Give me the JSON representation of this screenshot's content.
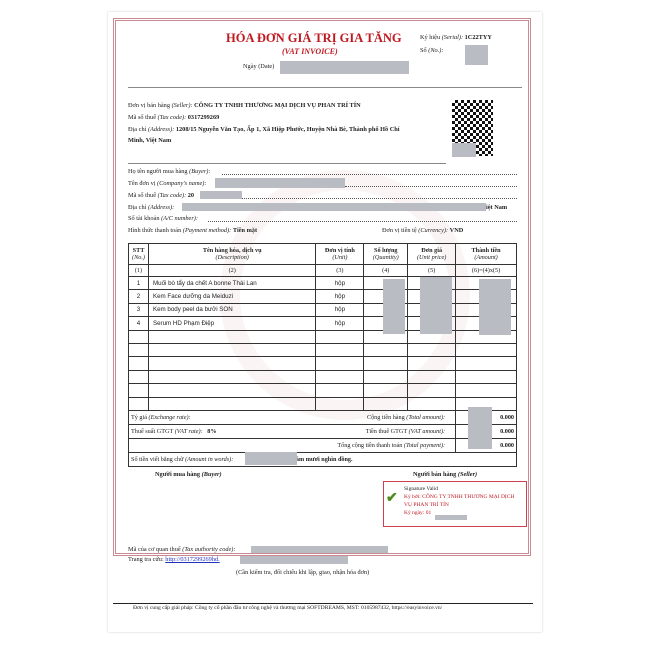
{
  "title": "HÓA ĐƠN GIÁ TRỊ GIA TĂNG",
  "subtitle": "(VAT INVOICE)",
  "date_label": "Ngày (Date)",
  "serial_label": "Ký hiệu",
  "serial_label_en": "(Serial):",
  "serial": "1C22TYY",
  "no_label": "Số",
  "no_label_en": "(No.):",
  "seller": {
    "name_label": "Đơn vị bán hàng",
    "name_label_en": "(Seller):",
    "name": "CÔNG TY TNHH THƯƠNG MẠI DỊCH VỤ PHAN TRÍ TÍN",
    "tax_label": "Mã số thuế",
    "tax_label_en": "(Tax code):",
    "tax": "0317299269",
    "addr_label": "Địa chỉ",
    "addr_label_en": "(Address):",
    "addr1": "1208/15 Nguyễn Văn Tạo, Ấp 1, Xã Hiệp Phước, Huyện Nhà Bè, Thành phố Hồ Chí",
    "addr2": "Minh, Việt Nam"
  },
  "buyer": {
    "name_label": "Họ tên người mua hàng",
    "name_label_en": "(Buyer):",
    "company_label": "Tên đơn vị",
    "company_label_en": "(Company's name):",
    "tax_label": "Mã số thuế",
    "tax_label_en": "(Tax code):",
    "tax_prefix": "20",
    "addr_label": "Địa chỉ",
    "addr_label_en": "(Address):",
    "addr_suffix": "iệt Nam",
    "acc_label": "Số tài khoản",
    "acc_label_en": "(A/C number):",
    "pay_label": "Hình thức thanh toán",
    "pay_label_en": "(Payment method):",
    "pay": "Tiền mặt",
    "cur_label": "Đơn vị tiền tệ",
    "cur_label_en": "(Currency):",
    "cur": "VND"
  },
  "table": {
    "headers": [
      [
        "STT",
        "(No.)",
        "(1)"
      ],
      [
        "Tên hàng hóa, dịch vụ",
        "(Description)",
        "(2)"
      ],
      [
        "Đơn vị tính",
        "(Unit)",
        "(3)"
      ],
      [
        "Số lượng",
        "(Quantity)",
        "(4)"
      ],
      [
        "Đơn giá",
        "(Unit price)",
        "(5)"
      ],
      [
        "Thành tiền",
        "(Amount)",
        "(6)=(4)x(5)"
      ]
    ],
    "rows": [
      [
        "1",
        "Muối bò tẩy da chết A bonne Thái Lan",
        "hộp"
      ],
      [
        "2",
        "Kem Face dưỡng da Meiduzi",
        "hộp"
      ],
      [
        "3",
        "Kem body peel da bưởi SON",
        "hộp"
      ],
      [
        "4",
        "Serum HD Phạm Điệp",
        "hộp"
      ]
    ]
  },
  "summary": {
    "rate_label": "Tỷ giá",
    "rate_label_en": "(Exchange rate):",
    "total_label": "Cộng tiền hàng",
    "total_label_en": "(Total amount):",
    "total": "0.000",
    "vat_rate_label": "Thuế suất GTGT",
    "vat_rate_label_en": "(VAT rate):",
    "vat_rate": "8%",
    "vat_label": "Tiền thuế GTGT",
    "vat_label_en": "(VAT amount):",
    "vat": "0.000",
    "pay_label": "Tổng cộng tiền thanh toán",
    "pay_label_en": "(Total payment):",
    "pay": "0.000",
    "words_label": "Số tiền viết bằng chữ",
    "words_label_en": "(Amount in words):",
    "words": "răm tám mươi nghìn đồng."
  },
  "sign": {
    "buyer": "Người mua hàng",
    "buyer_en": "(Buyer)",
    "seller": "Người bán hàng",
    "seller_en": "(Seller)",
    "valid": "Signature Valid",
    "by": "Ký bởi: CÔNG TY TNHH THƯƠNG MẠI DỊCH",
    "by2": "VỤ PHAN TRÍ TÍN",
    "date": "Ký ngày: 01"
  },
  "footer": {
    "auth_label": "Mã của cơ quan thuế",
    "auth_label_en": "(Tax authority code):",
    "lookup_label": "Trang tra cứu:",
    "lookup_link": "http://0317299269hd.",
    "note": "(Cần kiểm tra, đối chiếu khi lập, giao, nhận hóa đơn)",
    "provider": "Đơn vị cung cấp giải pháp: Công ty cổ phần đầu tư công nghệ và thương mại SOFTDREAMS, MST: 0105987432, https://easyinvoice.vn/"
  },
  "colors": {
    "title": "#c0181f",
    "frame": "#c98a92",
    "redact": "#b9bcc2"
  }
}
